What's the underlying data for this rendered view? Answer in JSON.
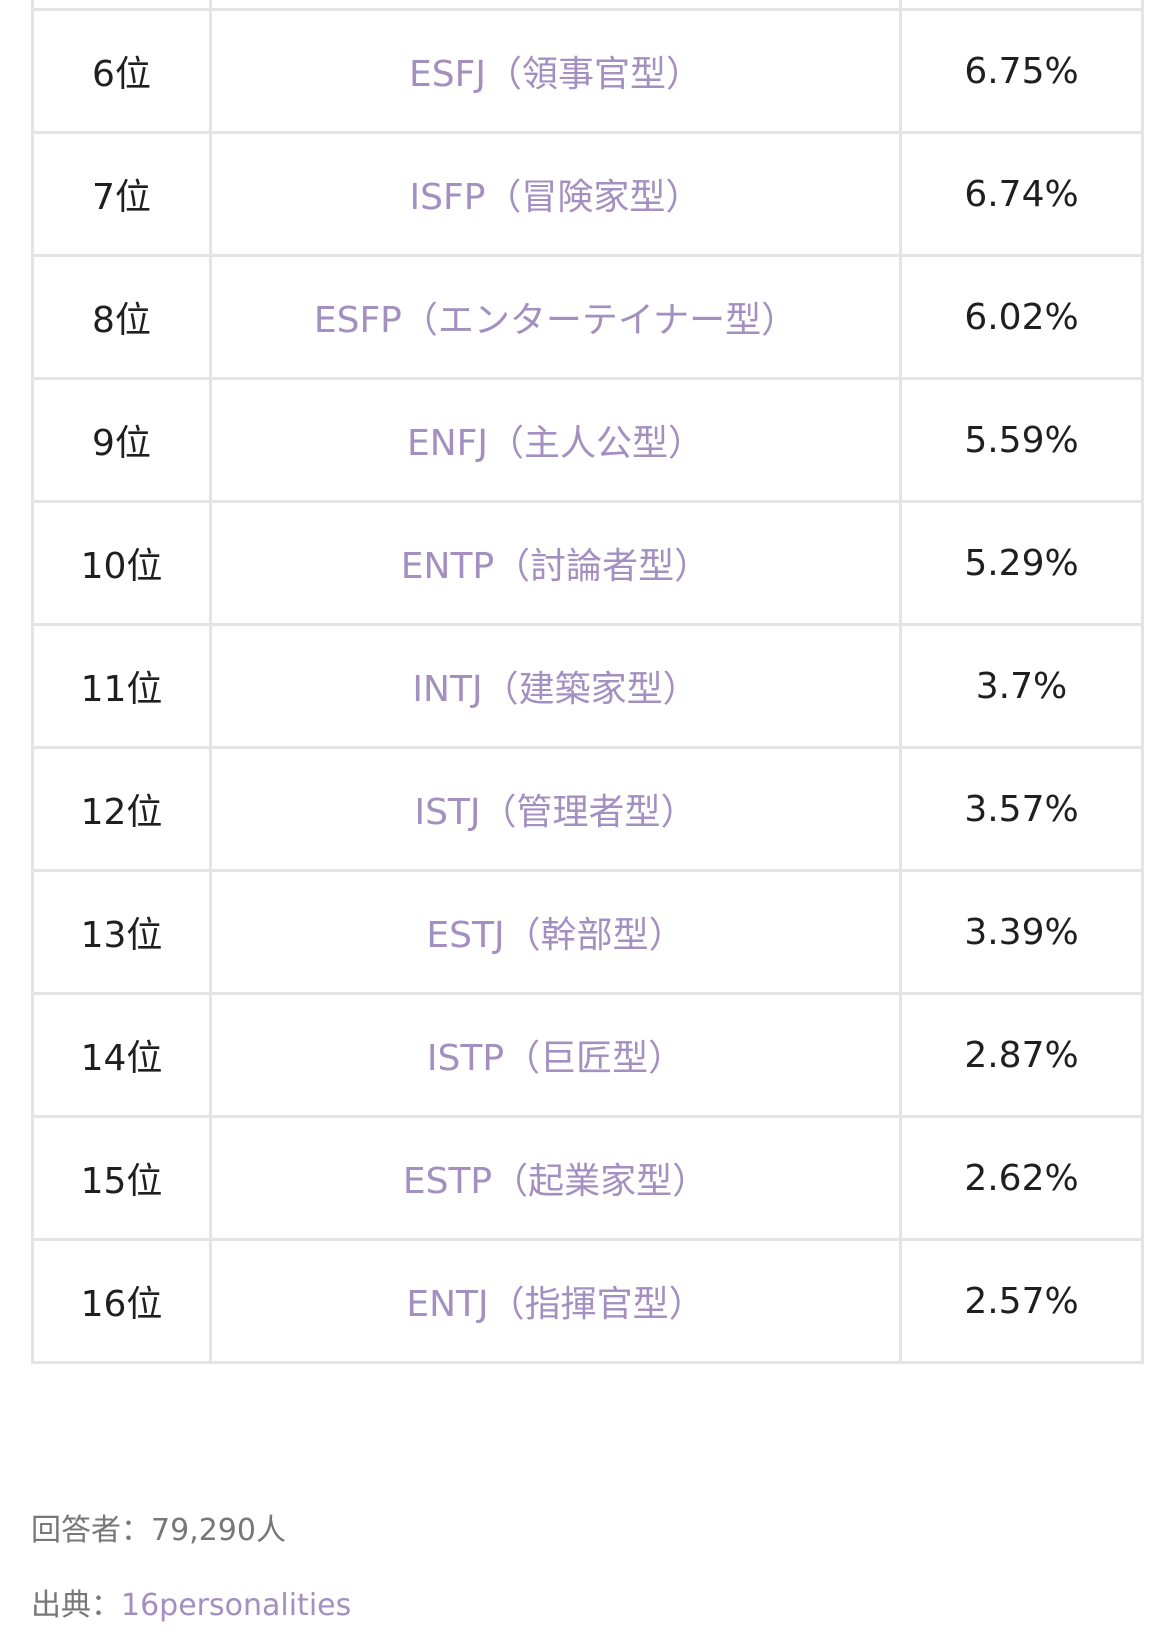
{
  "ranking": {
    "rows": [
      {
        "rank": "6位",
        "type": "ESFJ（領事官型）",
        "percent": "6.75%"
      },
      {
        "rank": "7位",
        "type": "ISFP（冒険家型）",
        "percent": "6.74%"
      },
      {
        "rank": "8位",
        "type": "ESFP（エンターテイナー型）",
        "percent": "6.02%"
      },
      {
        "rank": "9位",
        "type": "ENFJ（主人公型）",
        "percent": "5.59%"
      },
      {
        "rank": "10位",
        "type": "ENTP（討論者型）",
        "percent": "5.29%"
      },
      {
        "rank": "11位",
        "type": "INTJ（建築家型）",
        "percent": "3.7%"
      },
      {
        "rank": "12位",
        "type": "ISTJ（管理者型）",
        "percent": "3.57%"
      },
      {
        "rank": "13位",
        "type": "ESTJ（幹部型）",
        "percent": "3.39%"
      },
      {
        "rank": "14位",
        "type": "ISTP（巨匠型）",
        "percent": "2.87%"
      },
      {
        "rank": "15位",
        "type": "ESTP（起業家型）",
        "percent": "2.62%"
      },
      {
        "rank": "16位",
        "type": "ENTJ（指揮官型）",
        "percent": "2.57%"
      }
    ]
  },
  "footer": {
    "respondents_label": "回答者：",
    "respondents_value": "79,290人",
    "source_label": "出典：",
    "source_link": "16personalities"
  },
  "colors": {
    "link": "#a48fc1",
    "border": "#e4e4e4",
    "muted_text": "#777777"
  }
}
